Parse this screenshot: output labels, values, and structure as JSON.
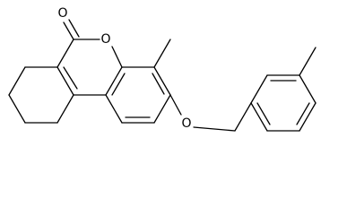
{
  "atom_labels": [
    "O",
    "O",
    "O"
  ]
}
